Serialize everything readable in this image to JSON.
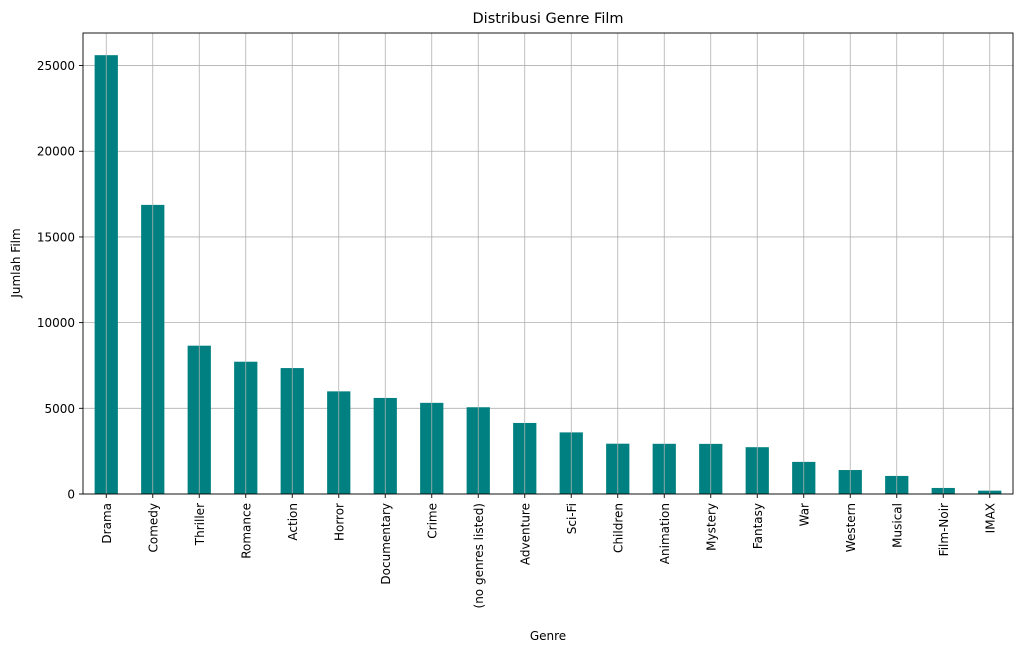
{
  "chart_data": {
    "type": "bar",
    "title": "Distribusi Genre Film",
    "xlabel": "Genre",
    "ylabel": "Jumlah Film",
    "categories": [
      "Drama",
      "Comedy",
      "Thriller",
      "Romance",
      "Action",
      "Horror",
      "Documentary",
      "Crime",
      "(no genres listed)",
      "Adventure",
      "Sci-Fi",
      "Children",
      "Animation",
      "Mystery",
      "Fantasy",
      "War",
      "Western",
      "Musical",
      "Film-Noir",
      "IMAX"
    ],
    "values": [
      25606,
      16870,
      8654,
      7719,
      7348,
      5989,
      5605,
      5319,
      5062,
      4145,
      3595,
      2935,
      2929,
      2925,
      2731,
      1874,
      1399,
      1054,
      353,
      195
    ],
    "yticks": [
      0,
      5000,
      10000,
      15000,
      20000,
      25000
    ],
    "ylim": [
      0,
      26900
    ],
    "grid": true,
    "bar_color": "#008080"
  }
}
